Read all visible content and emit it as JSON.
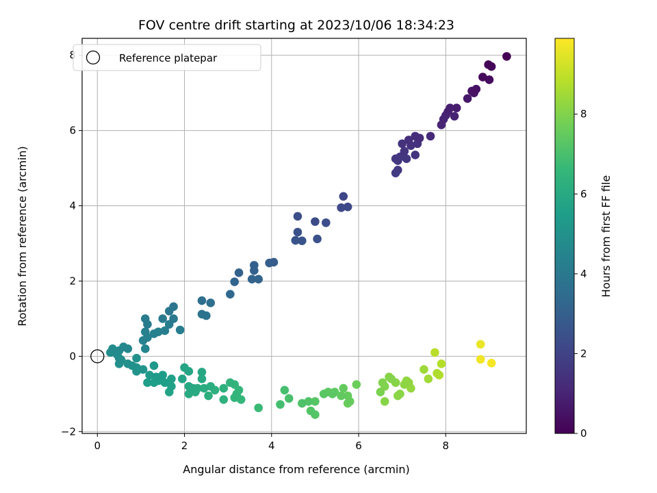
{
  "chart_data": {
    "type": "scatter",
    "title": "FOV centre drift starting at 2023/10/06 18:34:23",
    "xlabel": "Angular distance from reference (arcmin)",
    "ylabel": "Rotation from reference (arcmin)",
    "xlim": [
      -0.35,
      9.85
    ],
    "ylim": [
      -2.05,
      8.45
    ],
    "xticks": [
      0,
      2,
      4,
      6,
      8
    ],
    "yticks": [
      -2,
      0,
      2,
      4,
      6,
      8
    ],
    "grid": true,
    "legend": {
      "placement": "top-left",
      "entries": [
        "Reference platepar"
      ]
    },
    "colorbar": {
      "label": "Hours from first FF file",
      "range": [
        0,
        9.9
      ],
      "ticks": [
        0,
        2,
        4,
        6,
        8
      ],
      "colormap": "viridis"
    },
    "reference_point": {
      "name": "Reference platepar",
      "x": 0,
      "y": 0
    },
    "series": [
      {
        "points": [
          [
            9.4,
            7.97,
            0.0
          ],
          [
            8.98,
            7.75,
            0.1
          ],
          [
            9.05,
            7.7,
            0.15
          ],
          [
            8.85,
            7.42,
            0.25
          ],
          [
            9.0,
            7.35,
            0.3
          ],
          [
            8.7,
            7.1,
            0.45
          ],
          [
            8.6,
            7.05,
            0.5
          ],
          [
            8.65,
            7.0,
            0.55
          ],
          [
            8.5,
            6.85,
            0.65
          ],
          [
            8.25,
            6.6,
            0.8
          ],
          [
            8.1,
            6.6,
            0.85
          ],
          [
            8.05,
            6.5,
            0.9
          ],
          [
            8.0,
            6.4,
            0.95
          ],
          [
            8.2,
            6.38,
            0.95
          ],
          [
            7.95,
            6.3,
            1.0
          ],
          [
            7.9,
            6.15,
            1.05
          ],
          [
            7.65,
            5.85,
            1.2
          ],
          [
            7.4,
            5.8,
            1.3
          ],
          [
            7.3,
            5.85,
            1.3
          ],
          [
            7.15,
            5.75,
            1.35
          ],
          [
            7.2,
            5.6,
            1.4
          ],
          [
            7.35,
            5.65,
            1.4
          ],
          [
            7.0,
            5.65,
            1.45
          ],
          [
            7.05,
            5.45,
            1.5
          ],
          [
            7.3,
            5.35,
            1.5
          ],
          [
            6.95,
            5.3,
            1.55
          ],
          [
            6.85,
            5.25,
            1.6
          ],
          [
            7.1,
            5.25,
            1.6
          ],
          [
            6.9,
            5.2,
            1.6
          ],
          [
            6.9,
            4.95,
            1.7
          ],
          [
            6.85,
            4.87,
            1.75
          ],
          [
            5.65,
            4.25,
            2.1
          ],
          [
            5.6,
            3.95,
            2.2
          ],
          [
            5.75,
            3.97,
            2.2
          ],
          [
            4.6,
            3.72,
            2.4
          ],
          [
            4.6,
            3.3,
            2.5
          ],
          [
            5.0,
            3.58,
            2.3
          ],
          [
            5.25,
            3.55,
            2.4
          ],
          [
            5.05,
            3.12,
            2.5
          ],
          [
            4.55,
            3.08,
            2.6
          ],
          [
            4.7,
            3.07,
            2.6
          ],
          [
            4.05,
            2.5,
            2.9
          ],
          [
            3.95,
            2.48,
            2.95
          ],
          [
            3.6,
            2.42,
            3.0
          ],
          [
            3.6,
            2.28,
            3.05
          ],
          [
            3.25,
            2.22,
            3.1
          ],
          [
            3.55,
            2.05,
            3.15
          ],
          [
            3.7,
            2.05,
            3.15
          ],
          [
            3.15,
            1.98,
            3.2
          ],
          [
            3.05,
            1.65,
            3.35
          ],
          [
            2.4,
            1.48,
            3.6
          ],
          [
            2.6,
            1.42,
            3.65
          ],
          [
            2.4,
            1.12,
            3.75
          ],
          [
            2.5,
            1.08,
            3.8
          ],
          [
            1.75,
            1.32,
            3.9
          ],
          [
            1.65,
            1.2,
            3.95
          ],
          [
            1.75,
            1.0,
            4.0
          ],
          [
            1.5,
            1.0,
            4.05
          ],
          [
            1.1,
            1.0,
            4.1
          ],
          [
            1.15,
            0.85,
            4.15
          ],
          [
            1.65,
            0.85,
            4.15
          ],
          [
            1.9,
            0.7,
            4.2
          ],
          [
            1.55,
            0.68,
            4.25
          ],
          [
            1.4,
            0.65,
            4.3
          ],
          [
            1.3,
            0.6,
            4.3
          ],
          [
            1.1,
            0.65,
            4.3
          ],
          [
            1.15,
            0.5,
            4.35
          ],
          [
            1.05,
            0.42,
            4.4
          ],
          [
            1.1,
            0.2,
            4.5
          ],
          [
            0.7,
            0.2,
            4.6
          ],
          [
            0.6,
            0.25,
            4.65
          ],
          [
            0.5,
            0.15,
            4.7
          ],
          [
            0.35,
            0.2,
            4.75
          ],
          [
            0.3,
            0.1,
            4.8
          ],
          [
            0.45,
            0.05,
            4.8
          ],
          [
            0.5,
            -0.05,
            4.85
          ],
          [
            0.55,
            -0.1,
            4.9
          ],
          [
            0.5,
            -0.2,
            4.95
          ],
          [
            0.7,
            -0.2,
            4.95
          ],
          [
            0.8,
            -0.25,
            5.0
          ],
          [
            0.9,
            -0.3,
            5.05
          ],
          [
            0.9,
            -0.4,
            5.1
          ],
          [
            0.9,
            -0.05,
            5.0
          ],
          [
            1.05,
            -0.35,
            5.1
          ],
          [
            1.3,
            -0.25,
            5.3
          ],
          [
            1.2,
            -0.5,
            5.4
          ],
          [
            1.35,
            -0.55,
            5.4
          ],
          [
            1.5,
            -0.5,
            5.45
          ],
          [
            1.15,
            -0.7,
            5.5
          ],
          [
            1.3,
            -0.7,
            5.5
          ],
          [
            1.4,
            -0.65,
            5.5
          ],
          [
            1.55,
            -0.7,
            5.55
          ],
          [
            1.7,
            -0.6,
            5.6
          ],
          [
            1.7,
            -0.8,
            5.65
          ],
          [
            1.65,
            -0.95,
            5.7
          ],
          [
            1.95,
            -0.6,
            5.75
          ],
          [
            2.0,
            -0.3,
            5.8
          ],
          [
            2.1,
            -0.4,
            5.8
          ],
          [
            2.4,
            -0.42,
            5.9
          ],
          [
            2.4,
            -0.6,
            5.95
          ],
          [
            2.1,
            -0.8,
            5.95
          ],
          [
            2.2,
            -0.85,
            6.0
          ],
          [
            2.1,
            -1.0,
            6.05
          ],
          [
            2.25,
            -0.95,
            6.05
          ],
          [
            2.3,
            -0.85,
            6.05
          ],
          [
            2.45,
            -0.85,
            6.1
          ],
          [
            2.6,
            -0.8,
            6.15
          ],
          [
            2.55,
            -1.05,
            6.2
          ],
          [
            2.7,
            -0.9,
            6.25
          ],
          [
            2.9,
            -0.85,
            6.3
          ],
          [
            2.9,
            -1.15,
            6.35
          ],
          [
            3.05,
            -0.7,
            6.4
          ],
          [
            3.15,
            -0.75,
            6.45
          ],
          [
            3.2,
            -1.0,
            6.45
          ],
          [
            3.25,
            -0.9,
            6.5
          ],
          [
            3.15,
            -1.1,
            6.5
          ],
          [
            3.3,
            -1.15,
            6.55
          ],
          [
            3.7,
            -1.37,
            6.7
          ],
          [
            4.2,
            -1.28,
            6.9
          ],
          [
            4.3,
            -0.9,
            6.95
          ],
          [
            4.4,
            -1.12,
            7.0
          ],
          [
            4.7,
            -1.25,
            7.1
          ],
          [
            4.85,
            -1.2,
            7.15
          ],
          [
            4.9,
            -1.45,
            7.2
          ],
          [
            5.0,
            -1.55,
            7.25
          ],
          [
            5.0,
            -1.2,
            7.25
          ],
          [
            5.2,
            -1.0,
            7.3
          ],
          [
            5.3,
            -0.95,
            7.35
          ],
          [
            5.4,
            -1.0,
            7.35
          ],
          [
            5.45,
            -0.95,
            7.4
          ],
          [
            5.6,
            -1.05,
            7.45
          ],
          [
            5.65,
            -0.85,
            7.5
          ],
          [
            5.75,
            -1.05,
            7.55
          ],
          [
            5.8,
            -1.2,
            7.55
          ],
          [
            5.75,
            -1.25,
            7.6
          ],
          [
            5.95,
            -0.75,
            7.65
          ],
          [
            6.5,
            -0.95,
            7.9
          ],
          [
            6.55,
            -0.7,
            8.0
          ],
          [
            6.6,
            -0.8,
            8.0
          ],
          [
            6.7,
            -0.55,
            8.05
          ],
          [
            6.75,
            -0.6,
            8.05
          ],
          [
            6.6,
            -1.2,
            8.1
          ],
          [
            6.85,
            -0.7,
            8.1
          ],
          [
            6.9,
            -1.05,
            8.15
          ],
          [
            6.95,
            -1.0,
            8.15
          ],
          [
            7.05,
            -0.75,
            8.2
          ],
          [
            7.1,
            -0.65,
            8.25
          ],
          [
            7.15,
            -0.7,
            8.25
          ],
          [
            7.2,
            -0.85,
            8.3
          ],
          [
            7.5,
            -0.35,
            8.45
          ],
          [
            7.6,
            -0.6,
            8.5
          ],
          [
            7.8,
            -0.45,
            8.7
          ],
          [
            7.85,
            -0.5,
            8.75
          ],
          [
            7.9,
            -0.2,
            8.8
          ],
          [
            7.75,
            0.1,
            8.85
          ],
          [
            8.8,
            0.32,
            9.6
          ],
          [
            8.8,
            -0.08,
            9.7
          ],
          [
            9.05,
            -0.18,
            9.8
          ]
        ]
      }
    ]
  }
}
